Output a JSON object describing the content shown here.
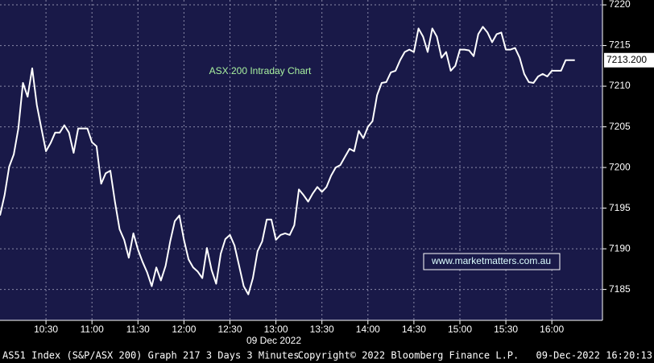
{
  "chart_data": {
    "type": "line",
    "title": "ASX 200 Intraday Chart",
    "watermark": "www.marketmatters.com.au",
    "date_label": "09 Dec 2022",
    "footer_left": "AS51 Index (S&P/ASX 200) Graph 217 3 Days 3 Minutes",
    "footer_center": "Copyright© 2022 Bloomberg Finance L.P.",
    "footer_right": "09-Dec-2022 16:20:13",
    "last_price": {
      "value": 7213.2,
      "label": "7213.200"
    },
    "color": "#ffffff",
    "x": [
      "10:00",
      "10:03",
      "10:06",
      "10:09",
      "10:12",
      "10:15",
      "10:18",
      "10:21",
      "10:24",
      "10:27",
      "10:30",
      "10:33",
      "10:36",
      "10:39",
      "10:42",
      "10:45",
      "10:48",
      "10:51",
      "10:54",
      "10:57",
      "11:00",
      "11:03",
      "11:06",
      "11:09",
      "11:12",
      "11:15",
      "11:18",
      "11:21",
      "11:24",
      "11:27",
      "11:30",
      "11:33",
      "11:36",
      "11:39",
      "11:42",
      "11:45",
      "11:48",
      "11:51",
      "11:54",
      "11:57",
      "12:00",
      "12:03",
      "12:06",
      "12:09",
      "12:12",
      "12:15",
      "12:18",
      "12:21",
      "12:24",
      "12:27",
      "12:30",
      "12:33",
      "12:36",
      "12:39",
      "12:42",
      "12:45",
      "12:48",
      "12:51",
      "12:54",
      "12:57",
      "13:00",
      "13:03",
      "13:06",
      "13:09",
      "13:12",
      "13:15",
      "13:18",
      "13:21",
      "13:24",
      "13:27",
      "13:30",
      "13:33",
      "13:36",
      "13:39",
      "13:42",
      "13:45",
      "13:48",
      "13:51",
      "13:54",
      "13:57",
      "14:00",
      "14:03",
      "14:06",
      "14:09",
      "14:12",
      "14:15",
      "14:18",
      "14:21",
      "14:24",
      "14:27",
      "14:30",
      "14:33",
      "14:36",
      "14:39",
      "14:42",
      "14:45",
      "14:48",
      "14:51",
      "14:54",
      "14:57",
      "15:00",
      "15:03",
      "15:06",
      "15:09",
      "15:12",
      "15:15",
      "15:18",
      "15:21",
      "15:24",
      "15:27",
      "15:30",
      "15:33",
      "15:36",
      "15:39",
      "15:42",
      "15:45",
      "15:48",
      "15:51",
      "15:54",
      "15:57",
      "16:00",
      "16:03",
      "16:06",
      "16:09",
      "16:12",
      "16:15"
    ],
    "values": [
      7194.1,
      7196.6,
      7200.1,
      7201.6,
      7204.8,
      7210.4,
      7208.7,
      7212.2,
      7207.7,
      7204.8,
      7202.0,
      7203.0,
      7204.3,
      7204.3,
      7205.2,
      7204.3,
      7201.8,
      7204.8,
      7204.8,
      7204.8,
      7203.1,
      7202.6,
      7198.0,
      7199.3,
      7199.6,
      7195.8,
      7192.4,
      7191.1,
      7188.9,
      7191.9,
      7189.9,
      7188.4,
      7187.1,
      7185.4,
      7187.7,
      7186.1,
      7187.9,
      7190.9,
      7193.4,
      7194.1,
      7191.1,
      7188.7,
      7187.7,
      7187.2,
      7186.4,
      7190.1,
      7187.4,
      7185.7,
      7189.4,
      7191.2,
      7191.7,
      7190.4,
      7187.9,
      7185.4,
      7184.4,
      7186.4,
      7189.7,
      7190.9,
      7193.6,
      7193.6,
      7191.1,
      7191.7,
      7191.9,
      7191.7,
      7192.9,
      7197.3,
      7196.6,
      7195.8,
      7196.8,
      7197.6,
      7197.0,
      7197.6,
      7199.0,
      7200.0,
      7200.3,
      7201.3,
      7202.3,
      7202.0,
      7204.5,
      7203.6,
      7205.0,
      7205.7,
      7208.9,
      7210.4,
      7210.5,
      7211.7,
      7211.9,
      7213.2,
      7214.2,
      7214.5,
      7214.2,
      7217.1,
      7216.1,
      7214.2,
      7217.1,
      7216.1,
      7213.5,
      7214.2,
      7211.9,
      7212.5,
      7214.5,
      7214.5,
      7214.4,
      7213.7,
      7216.4,
      7217.3,
      7216.6,
      7215.4,
      7216.4,
      7216.6,
      7214.5,
      7214.5,
      7214.7,
      7213.5,
      7211.5,
      7210.5,
      7210.4,
      7211.2,
      7211.5,
      7211.2,
      7211.9,
      7211.9,
      7211.9,
      7213.2,
      7213.2,
      7213.2
    ],
    "xlim": [
      "10:00",
      "16:33"
    ],
    "xticks": [
      "10:30",
      "11:00",
      "11:30",
      "12:00",
      "12:30",
      "13:00",
      "13:30",
      "14:00",
      "14:30",
      "15:00",
      "15:30",
      "16:00"
    ],
    "ylim": [
      7181.2,
      7220.6
    ],
    "yticks": [
      7185,
      7190,
      7195,
      7200,
      7205,
      7210,
      7215,
      7220
    ],
    "grid": true
  }
}
